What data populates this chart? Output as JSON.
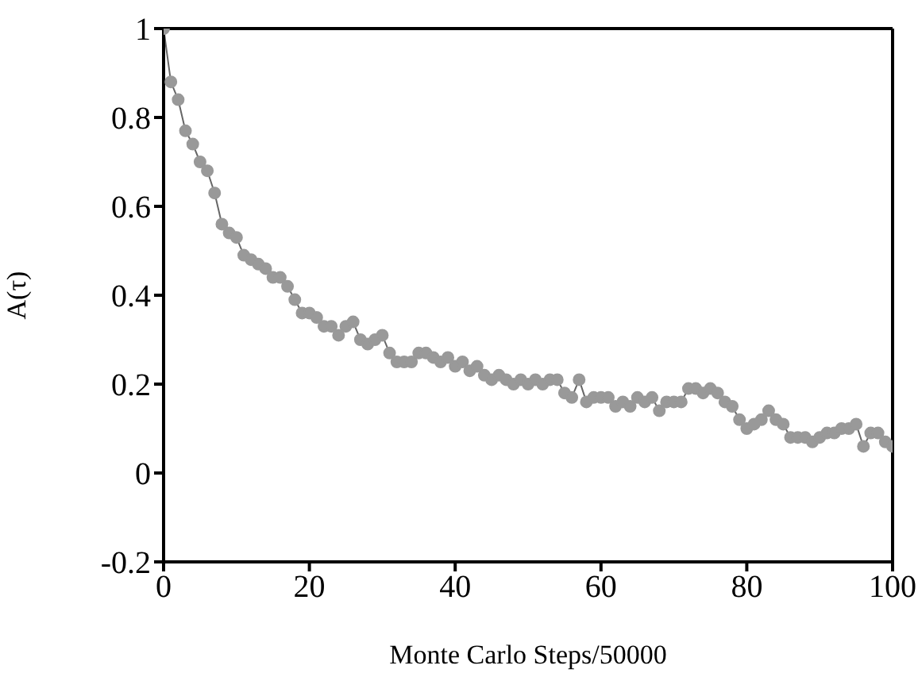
{
  "chart_data": {
    "type": "line",
    "xlabel": "Monte Carlo Steps/50000",
    "ylabel": "A(τ)",
    "marker": "circle",
    "line_style": "solid",
    "series": [
      {
        "color": "#999999",
        "x": [
          0,
          1,
          2,
          3,
          4,
          5,
          6,
          7,
          8,
          9,
          10,
          11,
          12,
          13,
          14,
          15,
          16,
          17,
          18,
          19,
          20,
          21,
          22,
          23,
          24,
          25,
          26,
          27,
          28,
          29,
          30,
          31,
          32,
          33,
          34,
          35,
          36,
          37,
          38,
          39,
          40,
          41,
          42,
          43,
          44,
          45,
          46,
          47,
          48,
          49,
          50,
          51,
          52,
          53,
          54,
          55,
          56,
          57,
          58,
          59,
          60,
          61,
          62,
          63,
          64,
          65,
          66,
          67,
          68,
          69,
          70,
          71,
          72,
          73,
          74,
          75,
          76,
          77,
          78,
          79,
          80,
          81,
          82,
          83,
          84,
          85,
          86,
          87,
          88,
          89,
          90,
          91,
          92,
          93,
          94,
          95,
          96,
          97,
          98,
          99,
          100
        ],
        "values": [
          1.0,
          0.88,
          0.84,
          0.77,
          0.74,
          0.7,
          0.68,
          0.63,
          0.56,
          0.54,
          0.53,
          0.49,
          0.48,
          0.47,
          0.46,
          0.44,
          0.44,
          0.42,
          0.39,
          0.36,
          0.36,
          0.35,
          0.33,
          0.33,
          0.31,
          0.33,
          0.34,
          0.3,
          0.29,
          0.3,
          0.31,
          0.27,
          0.25,
          0.25,
          0.25,
          0.27,
          0.27,
          0.26,
          0.25,
          0.26,
          0.24,
          0.25,
          0.23,
          0.24,
          0.22,
          0.21,
          0.22,
          0.21,
          0.2,
          0.21,
          0.2,
          0.21,
          0.2,
          0.21,
          0.21,
          0.18,
          0.17,
          0.21,
          0.16,
          0.17,
          0.17,
          0.17,
          0.15,
          0.16,
          0.15,
          0.17,
          0.16,
          0.17,
          0.14,
          0.16,
          0.16,
          0.16,
          0.19,
          0.19,
          0.18,
          0.19,
          0.18,
          0.16,
          0.15,
          0.12,
          0.1,
          0.11,
          0.12,
          0.14,
          0.12,
          0.11,
          0.08,
          0.08,
          0.08,
          0.07,
          0.08,
          0.09,
          0.09,
          0.1,
          0.1,
          0.11,
          0.06,
          0.09,
          0.09,
          0.07,
          0.06
        ]
      }
    ],
    "xlim": [
      0,
      100
    ],
    "xticks": [
      0,
      20,
      40,
      60,
      80,
      100
    ],
    "ylim": [
      -0.2,
      1
    ],
    "yticks": [
      -0.2,
      0,
      0.2,
      0.4,
      0.6,
      0.8,
      1
    ]
  }
}
